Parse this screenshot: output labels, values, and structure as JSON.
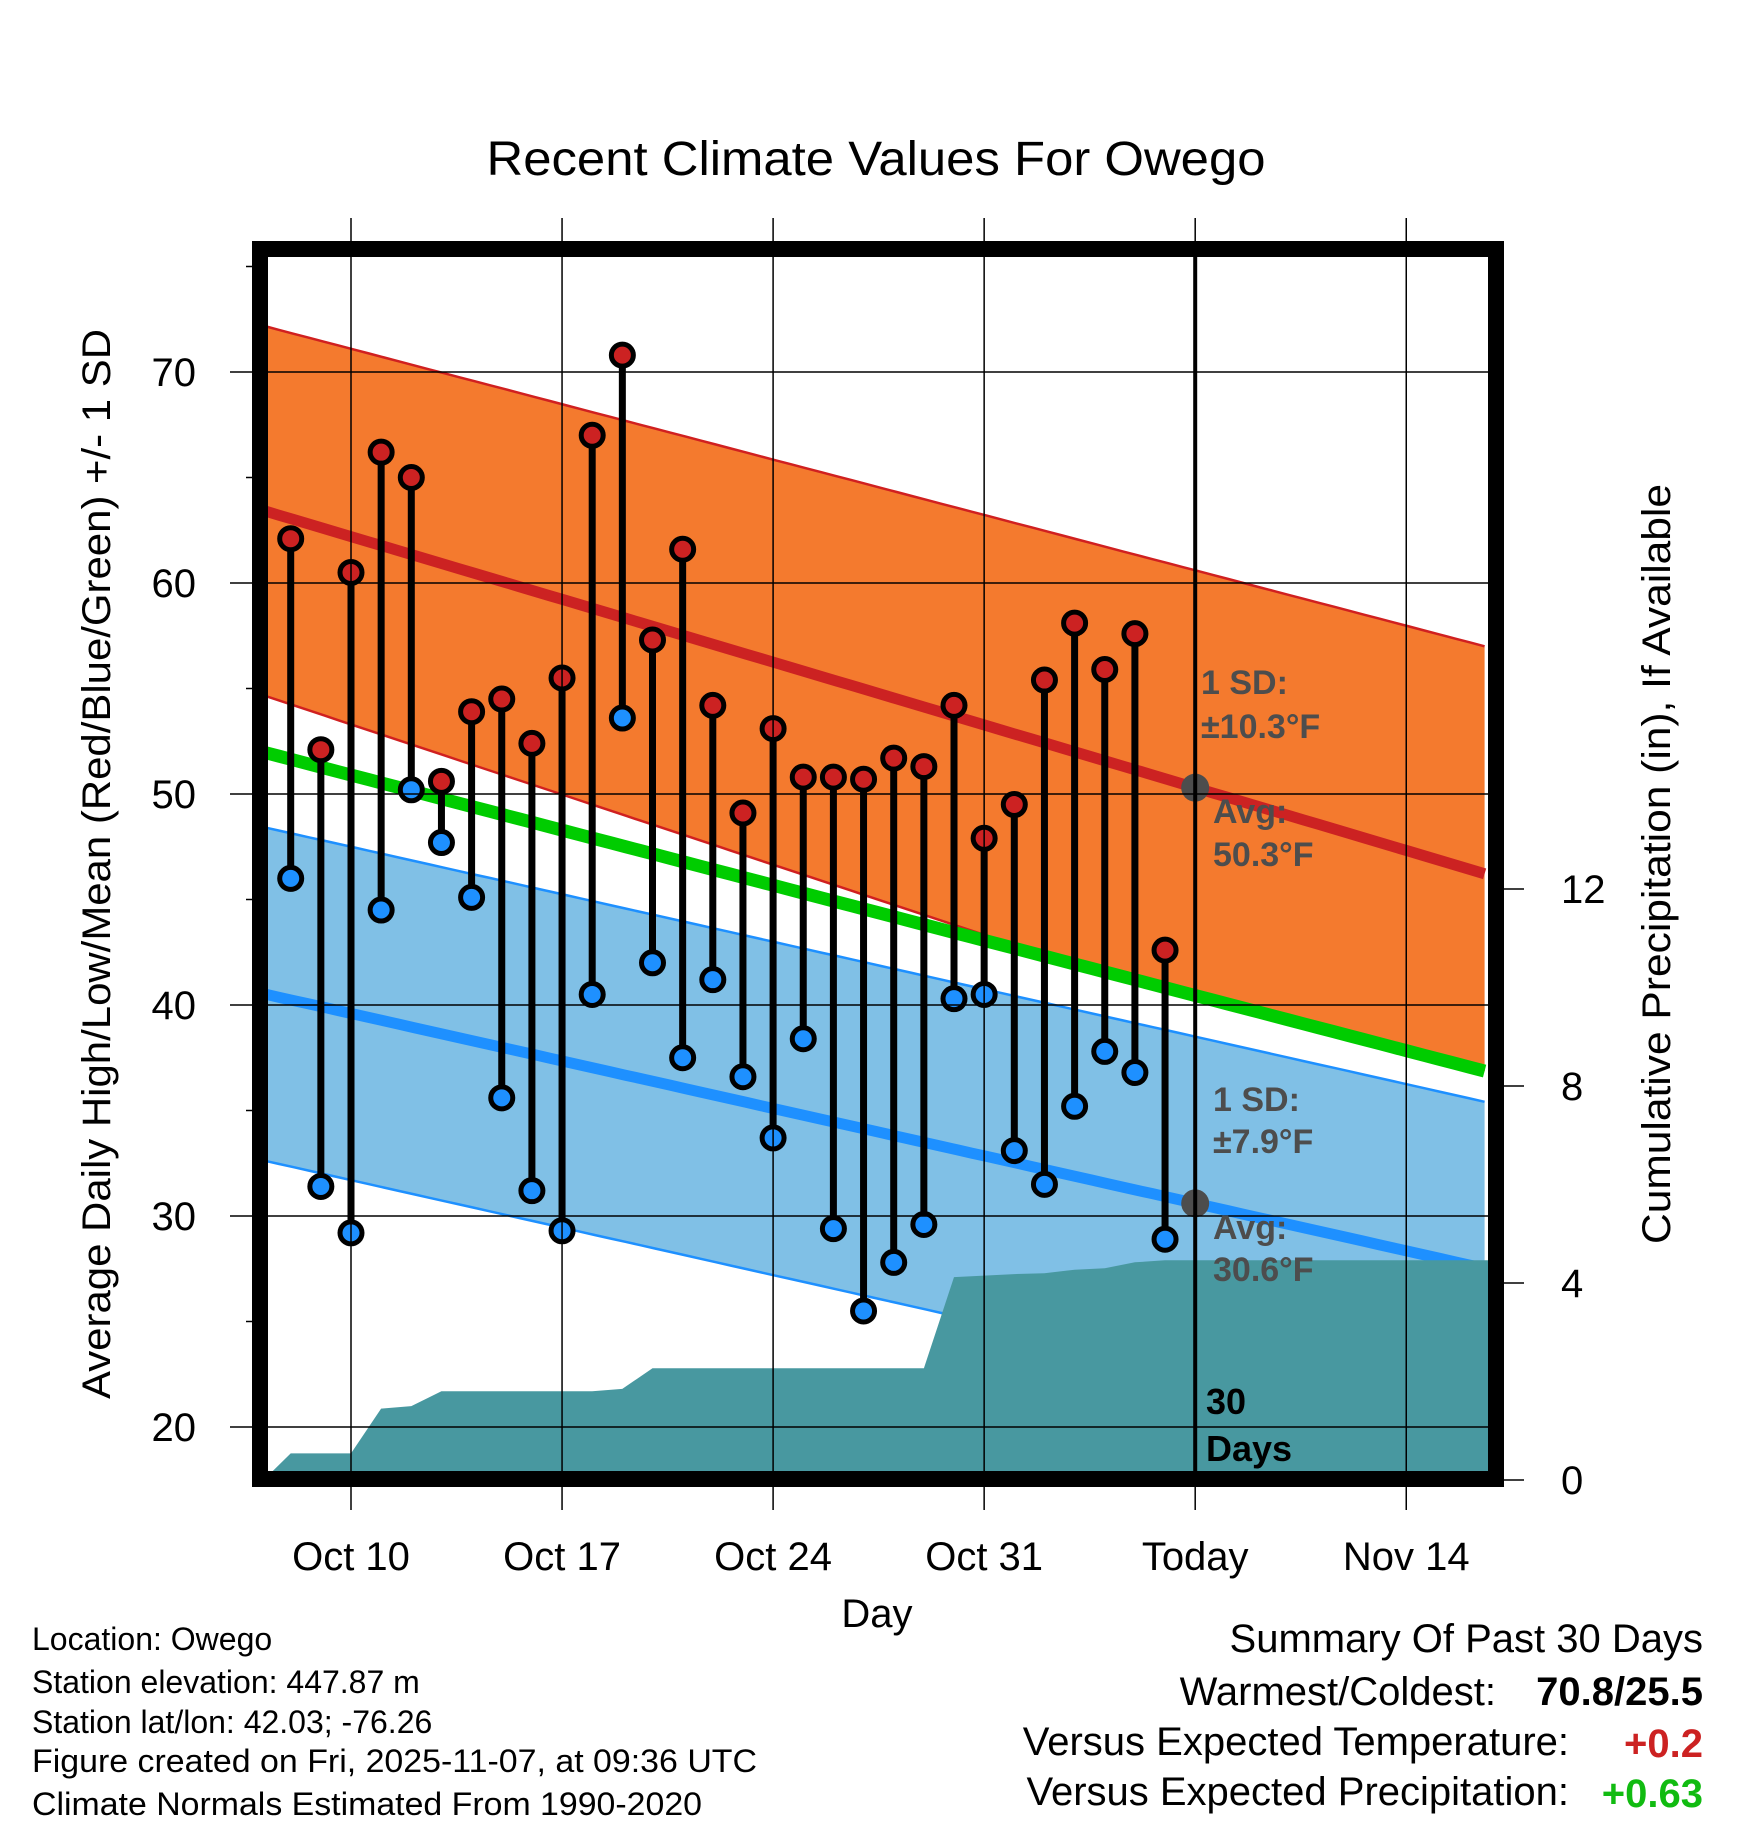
{
  "chart_data": {
    "type": "line",
    "title": "Recent Climate Values For Owego",
    "xlabel": "Day",
    "ylabel": "Average Daily High/Low/Mean (Red/Blue/Green) +/- 1 SD",
    "y2label": "Cumulative Precipitation (in), If Available",
    "ylim": [
      17.9,
      75.5
    ],
    "y2lim": [
      0,
      22
    ],
    "yticks": [
      "20",
      "30",
      "40",
      "50",
      "60",
      "70"
    ],
    "y2ticks": [
      "0",
      "4",
      "8",
      "12"
    ],
    "xticks": [
      {
        "label": "Oct 10",
        "day": 0
      },
      {
        "label": "Oct 17",
        "day": 7
      },
      {
        "label": "Oct 24",
        "day": 14
      },
      {
        "label": "Oct 31",
        "day": 21
      },
      {
        "label": "Today",
        "day": 28
      },
      {
        "label": "Nov 14",
        "day": 35
      }
    ],
    "grid": true,
    "days": [
      "Oct 8",
      "Oct 9",
      "Oct 10",
      "Oct 11",
      "Oct 12",
      "Oct 13",
      "Oct 14",
      "Oct 15",
      "Oct 16",
      "Oct 17",
      "Oct 18",
      "Oct 19",
      "Oct 20",
      "Oct 21",
      "Oct 22",
      "Oct 23",
      "Oct 24",
      "Oct 25",
      "Oct 26",
      "Oct 27",
      "Oct 28",
      "Oct 29",
      "Oct 30",
      "Oct 31",
      "Nov 1",
      "Nov 2",
      "Nov 3",
      "Nov 4",
      "Nov 5",
      "Nov 6"
    ],
    "series": [
      {
        "name": "Daily High",
        "color": "#cc2222",
        "values": [
          62.1,
          52.1,
          60.5,
          66.2,
          65.0,
          50.6,
          53.9,
          54.5,
          52.4,
          55.5,
          67.0,
          70.8,
          57.3,
          61.6,
          54.2,
          49.1,
          53.1,
          50.8,
          50.8,
          50.7,
          51.7,
          51.3,
          54.2,
          47.9,
          49.5,
          55.4,
          58.1,
          55.9,
          57.6,
          42.6
        ]
      },
      {
        "name": "Daily Low",
        "color": "#1e90ff",
        "values": [
          46.0,
          31.4,
          29.2,
          44.5,
          50.2,
          47.7,
          45.1,
          35.6,
          31.2,
          29.3,
          40.5,
          53.6,
          42.0,
          37.5,
          41.2,
          36.6,
          33.7,
          38.4,
          29.4,
          25.5,
          27.8,
          29.6,
          40.3,
          40.5,
          33.1,
          31.5,
          35.2,
          37.8,
          36.8,
          28.9
        ]
      },
      {
        "name": "Cumulative Precipitation (in)",
        "color": "#4898a0",
        "values": [
          0.54,
          0.54,
          0.54,
          1.45,
          1.5,
          1.8,
          1.8,
          1.8,
          1.8,
          1.8,
          1.8,
          1.85,
          2.27,
          2.27,
          2.27,
          2.27,
          2.27,
          2.27,
          2.27,
          2.27,
          2.27,
          2.27,
          4.12,
          4.15,
          4.18,
          4.2,
          4.27,
          4.3,
          4.42,
          4.46
        ]
      }
    ],
    "normals": {
      "anchor_days": [
        "Oct 10",
        "Today"
      ],
      "high_mean": [
        62.2,
        50.3
      ],
      "low_mean": [
        39.6,
        30.6
      ],
      "high_sd": [
        8.9,
        10.3
      ],
      "low_sd": [
        7.9,
        7.9
      ],
      "colors": {
        "high_band": "#f47a2e",
        "high_line": "#cc2222",
        "mean_line": "#00cc00",
        "low_band": "#80c0e6",
        "low_line": "#1e90ff"
      }
    },
    "annotations": {
      "high_sd": "1 SD:",
      "high_sd_value": "±10.3°F",
      "high_avg": "Avg:",
      "high_avg_value": "50.3°F",
      "low_sd": "1 SD:",
      "low_sd_value": "±7.9°F",
      "low_avg": "Avg:",
      "low_avg_value": "30.6°F",
      "window_count": "30",
      "window_unit": "Days"
    }
  },
  "footer": {
    "location": "Location: Owego",
    "elevation": "Station elevation: 447.87 m",
    "latlon": "Station lat/lon: 42.03; -76.26",
    "created": "Figure created on Fri, 2025-11-07, at 09:36 UTC",
    "normals": "Climate Normals Estimated From 1990-2020"
  },
  "summary": {
    "title": "Summary Of Past 30 Days",
    "warmest_label": "Warmest/Coldest:",
    "warmest_value": "70.8/25.5",
    "temp_label": "Versus Expected Temperature:",
    "temp_value": "+0.2",
    "temp_color": "#cc2222",
    "precip_label": "Versus Expected Precipitation:",
    "precip_value": "+0.63",
    "precip_color": "#11bb11"
  }
}
